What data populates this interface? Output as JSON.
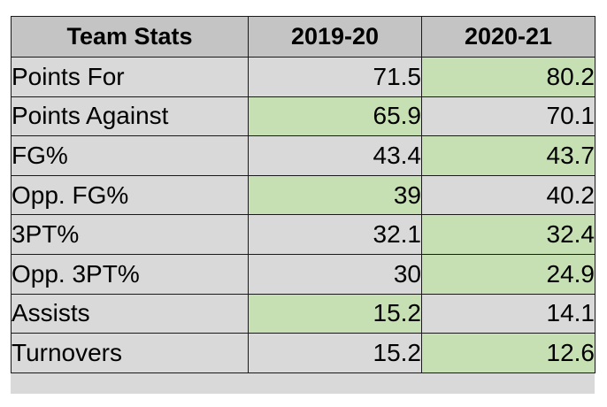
{
  "table": {
    "headers": [
      "Team Stats",
      "2019-20",
      "2020-21"
    ],
    "rows": [
      {
        "stat": "Points For",
        "y2019": "71.5",
        "y2020": "80.2",
        "highlight": "2020-21"
      },
      {
        "stat": "Points Against",
        "y2019": "65.9",
        "y2020": "70.1",
        "highlight": "2019-20"
      },
      {
        "stat": "FG%",
        "y2019": "43.4",
        "y2020": "43.7",
        "highlight": "2020-21"
      },
      {
        "stat": "Opp. FG%",
        "y2019": "39",
        "y2020": "40.2",
        "highlight": "2019-20"
      },
      {
        "stat": "3PT%",
        "y2019": "32.1",
        "y2020": "32.4",
        "highlight": "2020-21"
      },
      {
        "stat": "Opp. 3PT%",
        "y2019": "30",
        "y2020": "24.9",
        "highlight": "2020-21"
      },
      {
        "stat": "Assists",
        "y2019": "15.2",
        "y2020": "14.1",
        "highlight": "2019-20"
      },
      {
        "stat": "Turnovers",
        "y2019": "15.2",
        "y2020": "12.6",
        "highlight": "2020-21"
      }
    ]
  },
  "colors": {
    "header_bg": "#c4c4c4",
    "cell_bg": "#d9d9d9",
    "highlight_bg": "#c6e0b4",
    "border": "#1a1a1a"
  }
}
